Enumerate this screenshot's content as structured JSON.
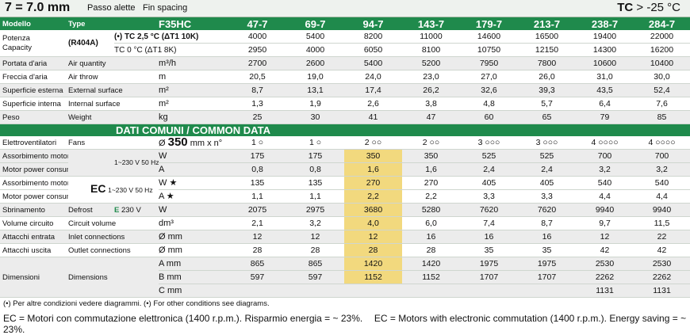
{
  "topbar": {
    "fin_spacing": "7 = 7.0 mm",
    "fin_label_it": "Passo alette",
    "fin_label_en": "Fin spacing",
    "tc_label": "TC",
    "tc_value": "> -25 °C"
  },
  "header": {
    "col1": "Modello",
    "col2": "Type",
    "model": "F35HC",
    "models": [
      "47-7",
      "69-7",
      "94-7",
      "143-7",
      "179-7",
      "213-7",
      "238-7",
      "284-7"
    ]
  },
  "capacity": {
    "label_it": "Potenza",
    "label_en": "Capacity",
    "refrigerant": "(R404A)",
    "cond1": "(•) TC 2,5 °C (ΔT1 10K)",
    "cond2": "TC 0 °C (ΔT1 8K)",
    "unit": "W",
    "values1": [
      "4000",
      "5400",
      "8200",
      "11000",
      "14600",
      "16500",
      "19400",
      "22000"
    ],
    "values2": [
      "2950",
      "4000",
      "6050",
      "8100",
      "10750",
      "12150",
      "14300",
      "16200"
    ]
  },
  "rows_top": [
    {
      "it": "Portata d'aria",
      "en": "Air quantity",
      "unit": "m³/h",
      "values": [
        "2700",
        "2600",
        "5400",
        "5200",
        "7950",
        "7800",
        "10600",
        "10400"
      ]
    },
    {
      "it": "Freccia d'aria",
      "en": "Air throw",
      "unit": "m",
      "values": [
        "20,5",
        "19,0",
        "24,0",
        "23,0",
        "27,0",
        "26,0",
        "31,0",
        "30,0"
      ]
    },
    {
      "it": "Superficie esterna",
      "en": "External surface",
      "unit": "m²",
      "values": [
        "8,7",
        "13,1",
        "17,4",
        "26,2",
        "32,6",
        "39,3",
        "43,5",
        "52,4"
      ]
    },
    {
      "it": "Superficie interna",
      "en": "Internal surface",
      "unit": "m²",
      "values": [
        "1,3",
        "1,9",
        "2,6",
        "3,8",
        "4,8",
        "5,7",
        "6,4",
        "7,6"
      ]
    },
    {
      "it": "Peso",
      "en": "Weight",
      "unit": "kg",
      "values": [
        "25",
        "30",
        "41",
        "47",
        "60",
        "65",
        "79",
        "85"
      ]
    }
  ],
  "section": {
    "title": "DATI COMUNI  /  COMMON DATA"
  },
  "fans": {
    "it": "Elettroventilatori",
    "en": "Fans",
    "diameter": "350",
    "unit": "mm x n°",
    "values": [
      "1 ○",
      "1 ○",
      "2 ○○",
      "2 ○○",
      "3 ○○○",
      "3 ○○○",
      "4 ○○○○",
      "4 ○○○○"
    ]
  },
  "motor_std": {
    "it": "Assorbimento motori",
    "en": "Motor power consumption",
    "supply": "1~230 V 50 Hz",
    "unit_w": "W",
    "unit_a": "A",
    "values_w": [
      "175",
      "175",
      "350",
      "350",
      "525",
      "525",
      "700",
      "700"
    ],
    "values_a": [
      "0,8",
      "0,8",
      "1,6",
      "1,6",
      "2,4",
      "2,4",
      "3,2",
      "3,2"
    ]
  },
  "motor_ec": {
    "it": "Assorbimento motori",
    "en": "Motor power consumption",
    "ec": "EC",
    "supply": "1~230 V 50 Hz",
    "unit_w": "W ★",
    "unit_a": "A ★",
    "values_w": [
      "135",
      "135",
      "270",
      "270",
      "405",
      "405",
      "540",
      "540"
    ],
    "values_a": [
      "1,1",
      "1,1",
      "2,2",
      "2,2",
      "3,3",
      "3,3",
      "4,4",
      "4,4"
    ]
  },
  "defrost": {
    "it": "Sbrinamento",
    "en": "Defrost",
    "e": "E",
    "supply": "230 V",
    "unit": "W",
    "values": [
      "2075",
      "2975",
      "3680",
      "5280",
      "7620",
      "7620",
      "9940",
      "9940"
    ]
  },
  "circuit": {
    "it": "Volume circuito",
    "en": "Circuit volume",
    "unit": "dm³",
    "values": [
      "2,1",
      "3,2",
      "4,0",
      "6,0",
      "7,4",
      "8,7",
      "9,7",
      "11,5"
    ]
  },
  "inlet": {
    "it": "Attacchi entrata",
    "en": "Inlet connections",
    "unit": "Ø mm",
    "values": [
      "12",
      "12",
      "12",
      "16",
      "16",
      "16",
      "12",
      "22"
    ]
  },
  "outlet": {
    "it": "Attacchi uscita",
    "en": "Outlet connections",
    "unit": "Ø mm",
    "values": [
      "28",
      "28",
      "28",
      "28",
      "35",
      "35",
      "42",
      "42"
    ]
  },
  "dims": {
    "it": "Dimensioni",
    "en": "Dimensions",
    "unit_a": "A mm",
    "unit_b": "B mm",
    "unit_c": "C mm",
    "values_a": [
      "865",
      "865",
      "1420",
      "1420",
      "1975",
      "1975",
      "2530",
      "2530"
    ],
    "values_b": [
      "597",
      "597",
      "1152",
      "1152",
      "1707",
      "1707",
      "2262",
      "2262"
    ],
    "values_c": [
      "",
      "",
      "",
      "",
      "",
      "",
      "1131",
      "1131"
    ]
  },
  "footnotes": {
    "note1": "(•) Per altre condizioni vedere diagrammi.  (•) For other conditions see diagrams.",
    "ec_it": "EC = Motori con commutazione elettronica (1400 r.p.m.). Risparmio energia = ~ 23%.",
    "ec_en": "EC = Motors with electronic commutation (1400 r.p.m.). Energy saving = ~ 23%."
  },
  "colors": {
    "accent": "#1f8a4c",
    "highlight": "#f2d97e"
  }
}
